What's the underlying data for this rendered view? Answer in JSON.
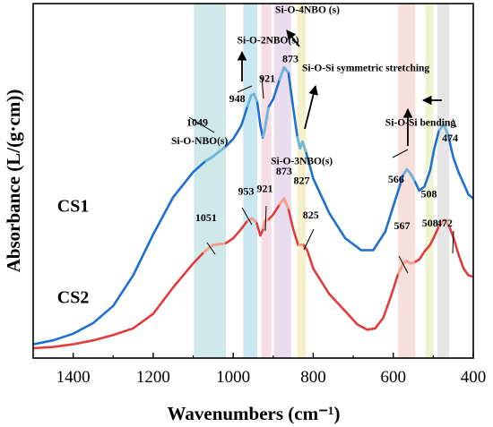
{
  "chart_data": {
    "type": "line",
    "xlabel": "Wavenumbers (cm⁻¹)",
    "ylabel": "Absorbance (L/(g·cm))",
    "xlim": [
      1500,
      400
    ],
    "x_reversed": true,
    "xticks": [
      "1400",
      "1200",
      "1000",
      "800",
      "600",
      "400"
    ],
    "xtick_values": [
      1400,
      1200,
      1000,
      800,
      600,
      400
    ],
    "yticks_shown": false,
    "grid": false,
    "bands": [
      {
        "x0": 1098,
        "x1": 1018,
        "color": "#cfe9ea"
      },
      {
        "x0": 975,
        "x1": 940,
        "color": "#c9e7f2"
      },
      {
        "x0": 930,
        "x1": 905,
        "color": "#f6dde3"
      },
      {
        "x0": 898,
        "x1": 855,
        "color": "#e9dcef"
      },
      {
        "x0": 840,
        "x1": 818,
        "color": "#f6f0cb"
      },
      {
        "x0": 588,
        "x1": 545,
        "color": "#f7e0dc"
      },
      {
        "x0": 520,
        "x1": 500,
        "color": "#eef4cf"
      },
      {
        "x0": 490,
        "x1": 460,
        "color": "#e6e6e6"
      }
    ],
    "series": [
      {
        "name": "CS1",
        "color": "#1f6fd1",
        "highlight_color": "#6fb7d8",
        "points": [
          [
            1500,
            0.05
          ],
          [
            1450,
            0.08
          ],
          [
            1400,
            0.13
          ],
          [
            1350,
            0.21
          ],
          [
            1300,
            0.34
          ],
          [
            1250,
            0.57
          ],
          [
            1200,
            0.88
          ],
          [
            1150,
            1.16
          ],
          [
            1100,
            1.35
          ],
          [
            1070,
            1.43
          ],
          [
            1049,
            1.47
          ],
          [
            1020,
            1.54
          ],
          [
            1000,
            1.6
          ],
          [
            980,
            1.7
          ],
          [
            965,
            1.84
          ],
          [
            955,
            1.93
          ],
          [
            948,
            1.94
          ],
          [
            940,
            1.88
          ],
          [
            932,
            1.7
          ],
          [
            926,
            1.61
          ],
          [
            921,
            1.67
          ],
          [
            912,
            1.84
          ],
          [
            900,
            1.9
          ],
          [
            885,
            2.04
          ],
          [
            873,
            2.14
          ],
          [
            862,
            2.1
          ],
          [
            852,
            1.88
          ],
          [
            840,
            1.62
          ],
          [
            833,
            1.53
          ],
          [
            827,
            1.58
          ],
          [
            818,
            1.5
          ],
          [
            800,
            1.3
          ],
          [
            760,
            1.04
          ],
          [
            720,
            0.85
          ],
          [
            680,
            0.76
          ],
          [
            650,
            0.76
          ],
          [
            620,
            0.9
          ],
          [
            595,
            1.14
          ],
          [
            575,
            1.33
          ],
          [
            566,
            1.37
          ],
          [
            557,
            1.34
          ],
          [
            546,
            1.28
          ],
          [
            535,
            1.21
          ],
          [
            522,
            1.24
          ],
          [
            508,
            1.36
          ],
          [
            498,
            1.52
          ],
          [
            486,
            1.66
          ],
          [
            474,
            1.71
          ],
          [
            462,
            1.62
          ],
          [
            450,
            1.46
          ],
          [
            437,
            1.35
          ],
          [
            425,
            1.27
          ],
          [
            412,
            1.18
          ],
          [
            400,
            1.15
          ]
        ]
      },
      {
        "name": "CS2",
        "color": "#e23b3b",
        "highlight_color": "#f2a089",
        "points": [
          [
            1500,
            0.02
          ],
          [
            1450,
            0.03
          ],
          [
            1400,
            0.05
          ],
          [
            1350,
            0.08
          ],
          [
            1300,
            0.12
          ],
          [
            1250,
            0.17
          ],
          [
            1200,
            0.28
          ],
          [
            1150,
            0.48
          ],
          [
            1100,
            0.66
          ],
          [
            1075,
            0.74
          ],
          [
            1051,
            0.8
          ],
          [
            1020,
            0.81
          ],
          [
            1000,
            0.85
          ],
          [
            980,
            0.92
          ],
          [
            965,
            0.98
          ],
          [
            953,
            1.0
          ],
          [
            942,
            0.97
          ],
          [
            932,
            0.87
          ],
          [
            925,
            0.92
          ],
          [
            921,
            0.98
          ],
          [
            912,
            0.99
          ],
          [
            900,
            1.03
          ],
          [
            885,
            1.1
          ],
          [
            873,
            1.15
          ],
          [
            862,
            1.07
          ],
          [
            850,
            0.92
          ],
          [
            838,
            0.8
          ],
          [
            825,
            0.8
          ],
          [
            815,
            0.76
          ],
          [
            800,
            0.62
          ],
          [
            760,
            0.43
          ],
          [
            720,
            0.3
          ],
          [
            690,
            0.2
          ],
          [
            665,
            0.16
          ],
          [
            645,
            0.17
          ],
          [
            625,
            0.25
          ],
          [
            605,
            0.42
          ],
          [
            588,
            0.58
          ],
          [
            575,
            0.66
          ],
          [
            567,
            0.68
          ],
          [
            557,
            0.66
          ],
          [
            546,
            0.67
          ],
          [
            535,
            0.69
          ],
          [
            522,
            0.75
          ],
          [
            508,
            0.8
          ],
          [
            498,
            0.86
          ],
          [
            486,
            0.94
          ],
          [
            472,
            0.99
          ],
          [
            460,
            0.94
          ],
          [
            448,
            0.84
          ],
          [
            436,
            0.72
          ],
          [
            424,
            0.62
          ],
          [
            412,
            0.57
          ],
          [
            400,
            0.56
          ]
        ]
      }
    ],
    "series_labels": [
      {
        "text": "CS1",
        "x": 1440,
        "y": 1.05
      },
      {
        "text": "CS2",
        "x": 1440,
        "y": 0.36
      }
    ],
    "peak_labels": [
      {
        "text": "1049",
        "x": 1090,
        "y": 1.7
      },
      {
        "text": "948",
        "x": 990,
        "y": 1.88
      },
      {
        "text": "921",
        "x": 915,
        "y": 2.03
      },
      {
        "text": "873",
        "x": 857,
        "y": 2.18
      },
      {
        "text": "827",
        "x": 829,
        "y": 1.26
      },
      {
        "text": "566",
        "x": 593,
        "y": 1.27
      },
      {
        "text": "508",
        "x": 511,
        "y": 1.16
      },
      {
        "text": "474",
        "x": 458,
        "y": 1.58
      },
      {
        "text": "1051",
        "x": 1068,
        "y": 0.98
      },
      {
        "text": "953",
        "x": 968,
        "y": 1.18
      },
      {
        "text": "921",
        "x": 921,
        "y": 1.2
      },
      {
        "text": "873",
        "x": 873,
        "y": 1.33
      },
      {
        "text": "825",
        "x": 806,
        "y": 1.0
      },
      {
        "text": "567",
        "x": 578,
        "y": 0.92
      },
      {
        "text": "508",
        "x": 508,
        "y": 0.94
      },
      {
        "text": "472",
        "x": 472,
        "y": 0.94
      }
    ],
    "assignments": [
      {
        "text": "Si-O-NBO(s)",
        "x": 1155,
        "y": 1.56
      },
      {
        "text": "Si-O-2NBO(s)",
        "x": 990,
        "y": 2.32
      },
      {
        "text": "Si-O-4NBO (s)",
        "x": 895,
        "y": 2.55
      },
      {
        "text": "Si-O-3NBO(s)",
        "x": 906,
        "y": 1.41
      },
      {
        "text": "Si-O-Si symmetric stretching",
        "x": 828,
        "y": 2.11
      },
      {
        "text": "Si-O-Si bending",
        "x": 620,
        "y": 1.7
      }
    ]
  }
}
